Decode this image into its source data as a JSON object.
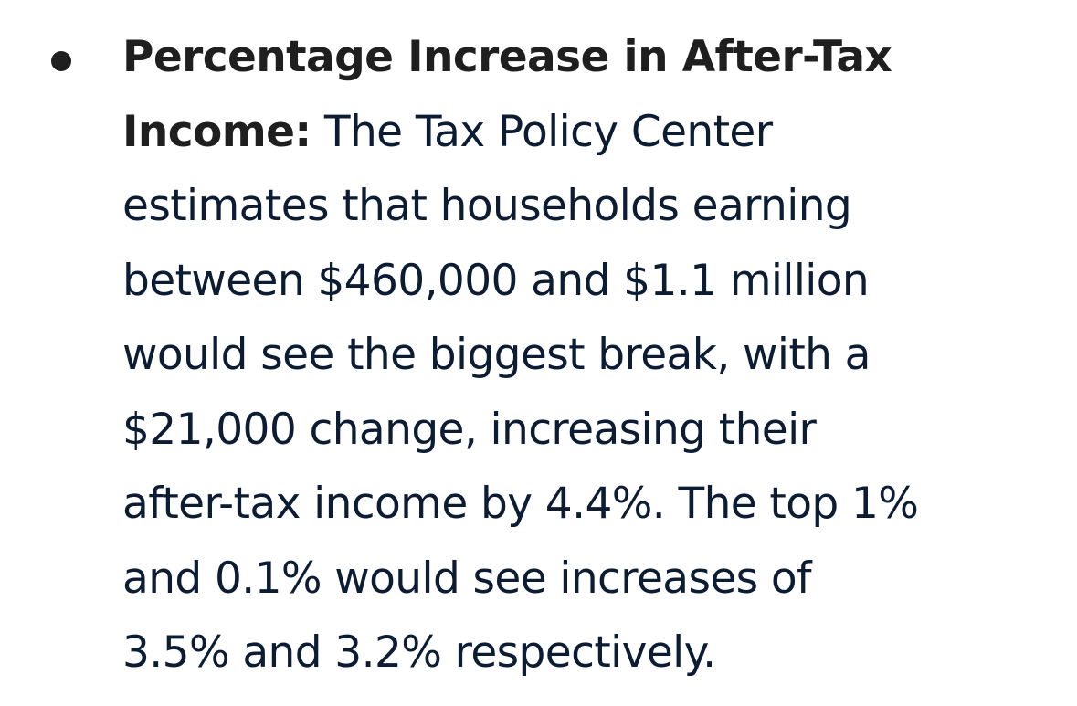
{
  "item": {
    "lead_line1": "Percentage Increase in After-Tax",
    "lead_line2": "Income:",
    "lines": [
      " The Tax Policy Center",
      "estimates that households earning",
      "between $460,000 and $1.1 million",
      "would see the biggest break, with a",
      "$21,000 change, increasing their",
      "after-tax income by 4.4%. The top 1%",
      "and 0.1% would see increases of",
      "3.5% and 3.2% respectively."
    ]
  }
}
